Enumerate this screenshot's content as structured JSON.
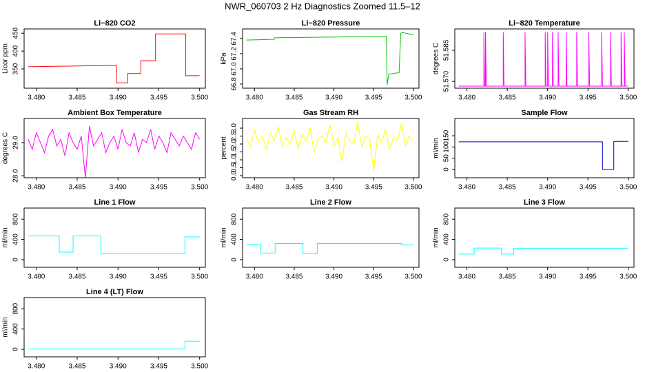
{
  "title": "NWR_060703  2 Hz Diagnostics Zoomed 11.5–12",
  "chart_data": [
    {
      "type": "line",
      "title": "Li−820 CO2",
      "ylabel": "Licor ppm",
      "color": "#ff0000",
      "x": [
        3.479,
        3.4898,
        3.4898,
        3.4912,
        3.4912,
        3.4928,
        3.4928,
        3.4946,
        3.4946,
        3.4983,
        3.4983,
        3.5
      ],
      "values": [
        356,
        360,
        311,
        311,
        337,
        337,
        373,
        373,
        448,
        448,
        331,
        331
      ],
      "xlim": [
        3.4785,
        3.5007
      ],
      "xticks": [
        {
          "value": 3.48,
          "label": "3.480"
        },
        3.485,
        {
          "value": 3.49,
          "label": "3.490"
        },
        3.495,
        {
          "value": 3.5,
          "label": "3.500"
        }
      ],
      "ylim": [
        296,
        462
      ],
      "yticks": [
        350,
        400,
        450
      ]
    },
    {
      "type": "line",
      "title": "Li−820 Pressure",
      "ylabel": "kPa",
      "color": "#00c000",
      "x": [
        3.479,
        3.4825,
        3.4825,
        3.49,
        3.4966,
        3.4967,
        3.4969,
        3.4982,
        3.4984,
        3.4986,
        3.5
      ],
      "values": [
        67.38,
        67.39,
        67.41,
        67.42,
        67.43,
        66.79,
        66.93,
        66.95,
        67.47,
        67.48,
        67.45
      ],
      "xlim": [
        3.4785,
        3.5007
      ],
      "xticks": [
        {
          "value": 3.48,
          "label": "3.480"
        },
        3.485,
        {
          "value": 3.49,
          "label": "3.490"
        },
        3.495,
        {
          "value": 3.5,
          "label": "3.500"
        }
      ],
      "ylim": [
        66.745,
        67.527
      ],
      "yticks": [
        66.8,
        {
          "value": 67,
          "label": "67.0"
        },
        67.2,
        67.4
      ]
    },
    {
      "type": "line",
      "title": "Li−820 Temperature",
      "ylabel": "degrees C",
      "color": "#ff00ff",
      "x": [
        3.479,
        3.4821,
        3.4821,
        3.4822,
        3.4823,
        3.4823,
        3.4824,
        3.4845,
        3.4845,
        3.4846,
        3.4872,
        3.4872,
        3.4873,
        3.4897,
        3.4897,
        3.4898,
        3.49,
        3.49,
        3.4901,
        3.4906,
        3.4906,
        3.4907,
        3.4913,
        3.4913,
        3.4914,
        3.4923,
        3.4923,
        3.4924,
        3.4936,
        3.4936,
        3.4937,
        3.4951,
        3.4951,
        3.4952,
        3.4967,
        3.4967,
        3.4968,
        3.4978,
        3.4978,
        3.4979,
        3.4991,
        3.4991,
        3.4992,
        3.4995,
        3.4995,
        3.4996,
        3.5
      ],
      "values": [
        51.5677,
        51.5677,
        51.5937,
        51.5677,
        51.5677,
        51.5937,
        51.5677,
        51.5677,
        51.5937,
        51.5677,
        51.5677,
        51.5937,
        51.5677,
        51.5677,
        51.5937,
        51.5677,
        51.5677,
        51.5937,
        51.5677,
        51.5677,
        51.5937,
        51.5677,
        51.5677,
        51.5937,
        51.5677,
        51.5677,
        51.5937,
        51.5677,
        51.5677,
        51.5937,
        51.5677,
        51.5677,
        51.5937,
        51.5677,
        51.5677,
        51.5937,
        51.5677,
        51.5677,
        51.5937,
        51.5677,
        51.5677,
        51.5937,
        51.5677,
        51.5677,
        51.5937,
        51.5677,
        51.5677
      ],
      "xlim": [
        3.4785,
        3.5007
      ],
      "xticks": [
        {
          "value": 3.48,
          "label": "3.480"
        },
        3.485,
        {
          "value": 3.49,
          "label": "3.490"
        },
        3.495,
        {
          "value": 3.5,
          "label": "3.500"
        }
      ],
      "ylim": [
        51.5667,
        51.5953
      ],
      "yticks": [
        {
          "value": 51.57,
          "label": "51.570"
        },
        51.585
      ]
    },
    {
      "type": "line",
      "title": "Ambient Box Temperature",
      "ylabel": "degrees C",
      "color": "#ff00ff",
      "x": [
        3.479,
        3.4795,
        3.48,
        3.4805,
        3.481,
        3.4815,
        3.482,
        3.4825,
        3.483,
        3.4835,
        3.484,
        3.4845,
        3.485,
        3.4855,
        3.486,
        3.4865,
        3.487,
        3.4875,
        3.488,
        3.4885,
        3.489,
        3.4895,
        3.49,
        3.4905,
        3.491,
        3.4915,
        3.492,
        3.4925,
        3.493,
        3.4935,
        3.494,
        3.4945,
        3.495,
        3.4955,
        3.496,
        3.4965,
        3.497,
        3.4975,
        3.498,
        3.4985,
        3.499,
        3.4995,
        3.5
      ],
      "values": [
        29.1,
        28.8,
        29.3,
        29.0,
        28.7,
        29.2,
        29.4,
        28.9,
        29.1,
        28.6,
        29.3,
        29.0,
        28.8,
        29.2,
        27.95,
        29.5,
        28.9,
        29.1,
        29.3,
        28.7,
        29.0,
        29.2,
        28.8,
        29.4,
        29.0,
        28.9,
        29.3,
        28.7,
        29.1,
        29.0,
        29.4,
        28.8,
        29.2,
        29.0,
        28.7,
        29.3,
        29.1,
        28.9,
        29.2,
        29.0,
        28.8,
        29.3,
        29.1
      ],
      "xlim": [
        3.4785,
        3.5007
      ],
      "xticks": [
        {
          "value": 3.48,
          "label": "3.480"
        },
        3.485,
        {
          "value": 3.49,
          "label": "3.490"
        },
        3.495,
        {
          "value": 3.5,
          "label": "3.500"
        }
      ],
      "ylim": [
        27.94,
        29.73
      ],
      "yticks": [
        {
          "value": 28,
          "label": "28.0"
        },
        {
          "value": 29,
          "label": "29.0"
        }
      ]
    },
    {
      "type": "line",
      "title": "Gas Stream RH",
      "ylabel": "percent",
      "color": "#ffff00",
      "x": [
        3.479,
        3.4795,
        3.48,
        3.4805,
        3.481,
        3.4815,
        3.482,
        3.4825,
        3.483,
        3.4835,
        3.484,
        3.4845,
        3.485,
        3.4855,
        3.486,
        3.4865,
        3.487,
        3.4875,
        3.488,
        3.4885,
        3.489,
        3.4895,
        3.49,
        3.4905,
        3.491,
        3.4915,
        3.492,
        3.4925,
        3.493,
        3.4935,
        3.494,
        3.4945,
        3.495,
        3.4955,
        3.496,
        3.4965,
        3.497,
        3.4975,
        3.498,
        3.4985,
        3.499,
        3.4995,
        3.5
      ],
      "values": [
        2.3,
        1.8,
        2.9,
        2.1,
        2.5,
        1.6,
        2.7,
        2.2,
        3.1,
        1.9,
        2.4,
        2.0,
        2.8,
        1.7,
        2.6,
        2.2,
        3.0,
        1.5,
        2.3,
        2.5,
        2.1,
        3.2,
        1.9,
        2.4,
        0.9,
        2.7,
        2.2,
        2.0,
        3.4,
        1.8,
        2.5,
        2.3,
        0.3,
        2.6,
        2.1,
        2.9,
        1.7,
        2.4,
        2.2,
        3.3,
        1.9,
        2.5,
        2.1
      ],
      "xlim": [
        3.4785,
        3.5007
      ],
      "xticks": [
        {
          "value": 3.48,
          "label": "3.480"
        },
        3.485,
        {
          "value": 3.49,
          "label": "3.490"
        },
        3.495,
        {
          "value": 3.5,
          "label": "3.500"
        }
      ],
      "ylim": [
        -0.13,
        3.61
      ],
      "yticks": [
        {
          "value": 0,
          "label": "0.0"
        },
        0.5,
        {
          "value": 1,
          "label": "1.0"
        },
        1.5,
        {
          "value": 2,
          "label": "2.0"
        },
        2.5,
        {
          "value": 3,
          "label": "3.0"
        }
      ]
    },
    {
      "type": "line",
      "title": "Sample Flow",
      "ylabel": "ml/min",
      "color": "#0000cc",
      "x": [
        3.479,
        3.4968,
        3.4968,
        3.4982,
        3.4982,
        3.5
      ],
      "values": [
        123,
        123,
        0,
        0,
        125,
        125
      ],
      "xlim": [
        3.4785,
        3.5007
      ],
      "xticks": [
        {
          "value": 3.48,
          "label": "3.480"
        },
        3.485,
        {
          "value": 3.49,
          "label": "3.490"
        },
        3.495,
        {
          "value": 3.5,
          "label": "3.500"
        }
      ],
      "ylim": [
        -37,
        227
      ],
      "yticks": [
        0,
        50,
        100,
        150
      ]
    },
    {
      "type": "line",
      "title": "Line 1 Flow",
      "ylabel": "ml/min",
      "color": "#00ffff",
      "x": [
        3.479,
        3.4828,
        3.4828,
        3.4845,
        3.4845,
        3.4879,
        3.4879,
        3.4897,
        3.4982,
        3.4982,
        3.5
      ],
      "values": [
        470,
        470,
        150,
        150,
        470,
        470,
        130,
        115,
        115,
        450,
        450
      ],
      "xlim": [
        3.4785,
        3.5007
      ],
      "xticks": [
        {
          "value": 3.48,
          "label": "3.480"
        },
        3.485,
        {
          "value": 3.49,
          "label": "3.490"
        },
        3.495,
        {
          "value": 3.5,
          "label": "3.500"
        }
      ],
      "ylim": [
        -150,
        1020
      ],
      "yticks": [
        0,
        400,
        800
      ]
    },
    {
      "type": "line",
      "title": "Line 2 Flow",
      "ylabel": "ml/min",
      "color": "#00ffff",
      "x": [
        3.479,
        3.4808,
        3.4808,
        3.4826,
        3.4826,
        3.4861,
        3.4861,
        3.4879,
        3.4879,
        3.4985,
        3.4985,
        3.5
      ],
      "values": [
        300,
        300,
        130,
        130,
        320,
        320,
        120,
        120,
        320,
        320,
        290,
        290
      ],
      "xlim": [
        3.4785,
        3.5007
      ],
      "xticks": [
        {
          "value": 3.48,
          "label": "3.480"
        },
        3.485,
        {
          "value": 3.49,
          "label": "3.490"
        },
        3.495,
        {
          "value": 3.5,
          "label": "3.500"
        }
      ],
      "ylim": [
        -150,
        1020
      ],
      "yticks": [
        0,
        400,
        800
      ]
    },
    {
      "type": "line",
      "title": "Line 3 Flow",
      "ylabel": "ml/min",
      "color": "#00ffff",
      "x": [
        3.479,
        3.4809,
        3.4809,
        3.4843,
        3.4843,
        3.4858,
        3.4858,
        3.5
      ],
      "values": [
        110,
        110,
        230,
        230,
        110,
        110,
        220,
        220
      ],
      "xlim": [
        3.4785,
        3.5007
      ],
      "xticks": [
        {
          "value": 3.48,
          "label": "3.480"
        },
        3.485,
        {
          "value": 3.49,
          "label": "3.490"
        },
        3.495,
        {
          "value": 3.5,
          "label": "3.500"
        }
      ],
      "ylim": [
        -150,
        1020
      ],
      "yticks": [
        0,
        400,
        800
      ]
    },
    {
      "type": "line",
      "title": "Line 4 (LT) Flow",
      "ylabel": "ml/min",
      "color": "#00ffff",
      "x": [
        3.479,
        3.4982,
        3.4982,
        3.5
      ],
      "values": [
        5,
        5,
        160,
        160
      ],
      "xlim": [
        3.4785,
        3.5007
      ],
      "xticks": [
        {
          "value": 3.48,
          "label": "3.480"
        },
        3.485,
        {
          "value": 3.49,
          "label": "3.490"
        },
        3.495,
        {
          "value": 3.5,
          "label": "3.500"
        }
      ],
      "ylim": [
        -150,
        1020
      ],
      "yticks": [
        0,
        400,
        800
      ]
    }
  ]
}
